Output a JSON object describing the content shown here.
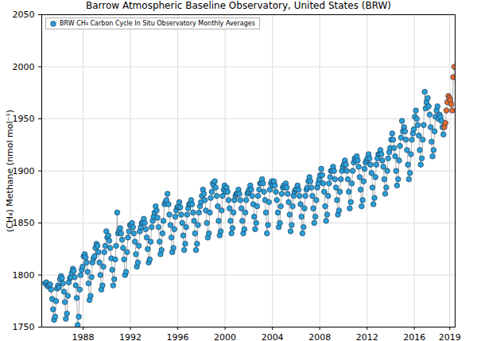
{
  "chart_data": {
    "type": "scatter",
    "title": "Barrow Atmospheric Baseline Observatory, United States (BRW)",
    "y_label": "(CH₄) Methane (nmol mol⁻¹)",
    "xlim": [
      1984.5,
      2019.45
    ],
    "xticks": [
      1988,
      1992,
      1996,
      2000,
      2004,
      2008,
      2012,
      2016,
      2019
    ],
    "ylim": [
      1750,
      2050
    ],
    "yticks": [
      1750,
      1800,
      1850,
      1900,
      1950,
      2000,
      2050
    ],
    "grid": true,
    "legend": "upper left",
    "series": [
      {
        "name": "BRW CH₄ Carbon Cycle In Situ Observatory Monthly Averages",
        "color": "#2a9fd8",
        "marker": "circle",
        "line_style": "solid",
        "x": [
          1984.79,
          1984.88,
          1984.96,
          1985.04,
          1985.13,
          1985.21,
          1985.29,
          1985.38,
          1985.46,
          1985.54,
          1985.63,
          1985.71,
          1985.79,
          1985.88,
          1985.96,
          1986.04,
          1986.13,
          1986.21,
          1986.29,
          1986.38,
          1986.46,
          1986.54,
          1986.63,
          1986.71,
          1986.79,
          1986.88,
          1986.96,
          1987.04,
          1987.13,
          1987.21,
          1987.29,
          1987.38,
          1987.46,
          1987.54,
          1987.63,
          1987.71,
          1987.79,
          1987.88,
          1987.96,
          1988.04,
          1988.13,
          1988.21,
          1988.29,
          1988.38,
          1988.46,
          1988.54,
          1988.63,
          1988.71,
          1988.79,
          1988.88,
          1988.96,
          1989.04,
          1989.13,
          1989.21,
          1989.29,
          1989.38,
          1989.46,
          1989.54,
          1989.63,
          1989.71,
          1989.79,
          1989.88,
          1989.96,
          1990.04,
          1990.13,
          1990.21,
          1990.29,
          1990.38,
          1990.46,
          1990.54,
          1990.63,
          1990.71,
          1990.79,
          1990.88,
          1990.96,
          1991.04,
          1991.13,
          1991.21,
          1991.29,
          1991.38,
          1991.46,
          1991.54,
          1991.63,
          1991.71,
          1991.79,
          1991.88,
          1991.96,
          1992.04,
          1992.13,
          1992.21,
          1992.29,
          1992.38,
          1992.46,
          1992.54,
          1992.63,
          1992.71,
          1992.79,
          1992.88,
          1992.96,
          1993.04,
          1993.13,
          1993.21,
          1993.29,
          1993.38,
          1993.46,
          1993.54,
          1993.63,
          1993.71,
          1993.79,
          1993.88,
          1993.96,
          1994.04,
          1994.13,
          1994.21,
          1994.29,
          1994.38,
          1994.46,
          1994.54,
          1994.63,
          1994.71,
          1994.79,
          1994.88,
          1994.96,
          1995.04,
          1995.13,
          1995.21,
          1995.29,
          1995.38,
          1995.46,
          1995.54,
          1995.63,
          1995.71,
          1995.79,
          1995.88,
          1995.96,
          1996.04,
          1996.13,
          1996.21,
          1996.29,
          1996.38,
          1996.46,
          1996.54,
          1996.63,
          1996.71,
          1996.79,
          1996.88,
          1996.96,
          1997.04,
          1997.13,
          1997.21,
          1997.29,
          1997.38,
          1997.46,
          1997.54,
          1997.63,
          1997.71,
          1997.79,
          1997.88,
          1997.96,
          1998.04,
          1998.13,
          1998.21,
          1998.29,
          1998.38,
          1998.46,
          1998.54,
          1998.63,
          1998.71,
          1998.79,
          1998.88,
          1998.96,
          1999.04,
          1999.13,
          1999.21,
          1999.29,
          1999.38,
          1999.46,
          1999.54,
          1999.63,
          1999.71,
          1999.79,
          1999.88,
          1999.96,
          2000.04,
          2000.13,
          2000.21,
          2000.29,
          2000.38,
          2000.46,
          2000.54,
          2000.63,
          2000.71,
          2000.79,
          2000.88,
          2000.96,
          2001.04,
          2001.13,
          2001.21,
          2001.29,
          2001.38,
          2001.46,
          2001.54,
          2001.63,
          2001.71,
          2001.79,
          2001.88,
          2001.96,
          2002.04,
          2002.13,
          2002.21,
          2002.29,
          2002.38,
          2002.46,
          2002.54,
          2002.63,
          2002.71,
          2002.79,
          2002.88,
          2002.96,
          2003.04,
          2003.13,
          2003.21,
          2003.29,
          2003.38,
          2003.46,
          2003.54,
          2003.63,
          2003.71,
          2003.79,
          2003.88,
          2003.96,
          2004.04,
          2004.13,
          2004.21,
          2004.29,
          2004.38,
          2004.46,
          2004.54,
          2004.63,
          2004.71,
          2004.79,
          2004.88,
          2004.96,
          2005.04,
          2005.13,
          2005.21,
          2005.29,
          2005.38,
          2005.46,
          2005.54,
          2005.63,
          2005.71,
          2005.79,
          2005.88,
          2005.96,
          2006.04,
          2006.13,
          2006.21,
          2006.29,
          2006.38,
          2006.46,
          2006.54,
          2006.63,
          2006.71,
          2006.79,
          2006.88,
          2006.96,
          2007.04,
          2007.13,
          2007.21,
          2007.29,
          2007.38,
          2007.46,
          2007.54,
          2007.63,
          2007.71,
          2007.79,
          2007.88,
          2007.96,
          2008.04,
          2008.13,
          2008.21,
          2008.29,
          2008.38,
          2008.46,
          2008.54,
          2008.63,
          2008.71,
          2008.79,
          2008.88,
          2008.96,
          2009.04,
          2009.13,
          2009.21,
          2009.29,
          2009.38,
          2009.46,
          2009.54,
          2009.63,
          2009.71,
          2009.79,
          2009.88,
          2009.96,
          2010.04,
          2010.13,
          2010.21,
          2010.29,
          2010.38,
          2010.46,
          2010.54,
          2010.63,
          2010.71,
          2010.79,
          2010.88,
          2010.96,
          2011.04,
          2011.13,
          2011.21,
          2011.29,
          2011.38,
          2011.46,
          2011.54,
          2011.63,
          2011.71,
          2011.79,
          2011.88,
          2011.96,
          2012.04,
          2012.13,
          2012.21,
          2012.29,
          2012.38,
          2012.46,
          2012.54,
          2012.63,
          2012.71,
          2012.79,
          2012.88,
          2012.96,
          2013.04,
          2013.13,
          2013.21,
          2013.29,
          2013.38,
          2013.46,
          2013.54,
          2013.63,
          2013.71,
          2013.79,
          2013.88,
          2013.96,
          2014.04,
          2014.13,
          2014.21,
          2014.29,
          2014.38,
          2014.46,
          2014.54,
          2014.63,
          2014.71,
          2014.79,
          2014.88,
          2014.96,
          2015.04,
          2015.13,
          2015.21,
          2015.29,
          2015.38,
          2015.46,
          2015.54,
          2015.63,
          2015.71,
          2015.79,
          2015.88,
          2015.96,
          2016.04,
          2016.13,
          2016.21,
          2016.29,
          2016.38,
          2016.46,
          2016.54,
          2016.63,
          2016.71,
          2016.79,
          2016.88,
          2016.96,
          2017.04,
          2017.13,
          2017.21,
          2017.29,
          2017.38,
          2017.46,
          2017.54,
          2017.63,
          2017.71,
          2017.79,
          2017.88,
          2017.96,
          2018.04,
          2018.13,
          2018.21,
          2018.29,
          2018.38,
          2018.46
        ],
        "values": [
          1792,
          1793,
          1790,
          1789,
          1790,
          1791,
          1786,
          1777,
          1767,
          1757,
          1760,
          1775,
          1787,
          1790,
          1788,
          1796,
          1799,
          1797,
          1792,
          1784,
          1774,
          1758,
          1763,
          1780,
          1793,
          1797,
          1798,
          1802,
          1806,
          1804,
          1798,
          1790,
          1778,
          1752,
          1760,
          1786,
          1800,
          1805,
          1808,
          1818,
          1820,
          1817,
          1812,
          1803,
          1792,
          1776,
          1780,
          1798,
          1812,
          1816,
          1818,
          1826,
          1830,
          1828,
          1822,
          1812,
          1800,
          1786,
          1790,
          1808,
          1822,
          1828,
          1842,
          1836,
          1838,
          1833,
          1826,
          1816,
          1805,
          1790,
          1796,
          1815,
          1828,
          1860,
          1840,
          1842,
          1845,
          1840,
          1834,
          1826,
          1815,
          1800,
          1803,
          1822,
          1836,
          1842,
          1848,
          1848,
          1850,
          1846,
          1840,
          1832,
          1820,
          1808,
          1812,
          1828,
          1842,
          1846,
          1850,
          1850,
          1854,
          1850,
          1844,
          1836,
          1825,
          1812,
          1815,
          1832,
          1846,
          1852,
          1856,
          1860,
          1866,
          1862,
          1855,
          1846,
          1832,
          1820,
          1824,
          1840,
          1852,
          1868,
          1870,
          1872,
          1878,
          1868,
          1858,
          1848,
          1836,
          1822,
          1826,
          1844,
          1856,
          1862,
          1865,
          1866,
          1870,
          1865,
          1858,
          1850,
          1838,
          1824,
          1830,
          1846,
          1858,
          1864,
          1868,
          1868,
          1872,
          1868,
          1860,
          1852,
          1840,
          1824,
          1830,
          1848,
          1860,
          1866,
          1870,
          1876,
          1882,
          1878,
          1872,
          1862,
          1850,
          1836,
          1840,
          1860,
          1874,
          1880,
          1888,
          1886,
          1890,
          1884,
          1876,
          1866,
          1852,
          1838,
          1842,
          1862,
          1876,
          1882,
          1886,
          1880,
          1884,
          1880,
          1872,
          1864,
          1852,
          1840,
          1845,
          1860,
          1872,
          1876,
          1878,
          1878,
          1882,
          1878,
          1872,
          1864,
          1852,
          1840,
          1844,
          1860,
          1872,
          1878,
          1880,
          1882,
          1886,
          1882,
          1876,
          1868,
          1856,
          1844,
          1850,
          1866,
          1876,
          1882,
          1888,
          1888,
          1892,
          1888,
          1880,
          1872,
          1860,
          1840,
          1848,
          1870,
          1882,
          1888,
          1890,
          1886,
          1890,
          1886,
          1880,
          1872,
          1860,
          1846,
          1850,
          1866,
          1878,
          1884,
          1886,
          1884,
          1888,
          1884,
          1878,
          1870,
          1858,
          1842,
          1848,
          1866,
          1876,
          1880,
          1882,
          1882,
          1886,
          1882,
          1876,
          1868,
          1856,
          1840,
          1846,
          1864,
          1876,
          1882,
          1884,
          1890,
          1894,
          1890,
          1884,
          1876,
          1864,
          1850,
          1856,
          1872,
          1884,
          1888,
          1892,
          1896,
          1902,
          1896,
          1888,
          1880,
          1866,
          1852,
          1858,
          1876,
          1888,
          1894,
          1900,
          1900,
          1904,
          1900,
          1892,
          1884,
          1872,
          1858,
          1862,
          1880,
          1892,
          1900,
          1904,
          1906,
          1910,
          1906,
          1900,
          1892,
          1880,
          1864,
          1870,
          1888,
          1900,
          1908,
          1912,
          1910,
          1914,
          1910,
          1904,
          1894,
          1882,
          1866,
          1872,
          1890,
          1902,
          1908,
          1910,
          1912,
          1916,
          1912,
          1906,
          1898,
          1884,
          1868,
          1874,
          1894,
          1906,
          1912,
          1916,
          1916,
          1920,
          1916,
          1910,
          1904,
          1892,
          1878,
          1884,
          1900,
          1912,
          1918,
          1922,
          1930,
          1936,
          1930,
          1922,
          1914,
          1900,
          1886,
          1892,
          1910,
          1924,
          1932,
          1948,
          1938,
          1942,
          1938,
          1930,
          1920,
          1906,
          1892,
          1898,
          1916,
          1930,
          1936,
          1940,
          1952,
          1958,
          1950,
          1944,
          1934,
          1920,
          1906,
          1912,
          1930,
          1944,
          1976,
          1960,
          1966,
          1970,
          1962,
          1954,
          1942,
          1928,
          1914,
          1920,
          1938,
          1952,
          1958,
          1962,
          1950,
          1954,
          1952,
          1948,
          1942,
          1935
        ]
      },
      {
        "color": "#e8692d",
        "marker": "circle",
        "line_style": "solid",
        "x": [
          2018.54,
          2018.63,
          2018.71,
          2018.79,
          2018.88,
          2018.96,
          2019.04,
          2019.13,
          2019.21,
          2019.29,
          2019.38
        ],
        "values": [
          1942,
          1946,
          1958,
          1966,
          1972,
          1970,
          1968,
          1964,
          1958,
          1990,
          2000
        ]
      }
    ]
  }
}
